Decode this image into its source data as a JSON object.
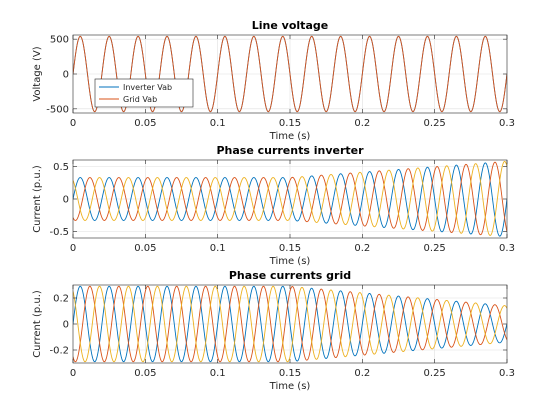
{
  "chart_data": [
    {
      "type": "line",
      "title": "Line voltage",
      "xlabel": "Time (s)",
      "ylabel": "Voltage (V)",
      "xlim": [
        0,
        0.3
      ],
      "ylim": [
        -560,
        560
      ],
      "xticks": [
        0,
        0.05,
        0.1,
        0.15,
        0.2,
        0.25,
        0.3
      ],
      "xtick_labels": [
        "0",
        "0.05",
        "0.1",
        "0.15",
        "0.2",
        "0.25",
        "0.3"
      ],
      "yticks": [
        -500,
        0,
        500
      ],
      "ytick_labels": [
        "-500",
        "0",
        "500"
      ],
      "grid": true,
      "legend": {
        "position": "bottom-left",
        "entries": [
          "Inverter Vab",
          "Grid Vab"
        ]
      },
      "series": [
        {
          "name": "Inverter Vab",
          "color": "#0072BD",
          "waveform": "sine",
          "frequency_hz": 50,
          "amplitude": 540,
          "phase_deg": 0
        },
        {
          "name": "Grid Vab",
          "color": "#D95319",
          "waveform": "sine",
          "frequency_hz": 50,
          "amplitude": 540,
          "phase_deg": 0
        }
      ]
    },
    {
      "type": "line",
      "title": "Phase currents inverter",
      "xlabel": "Time (s)",
      "ylabel": "Current (p.u.)",
      "xlim": [
        0,
        0.3
      ],
      "ylim": [
        -0.6,
        0.6
      ],
      "xticks": [
        0,
        0.05,
        0.1,
        0.15,
        0.2,
        0.25,
        0.3
      ],
      "xtick_labels": [
        "0",
        "0.05",
        "0.1",
        "0.15",
        "0.2",
        "0.25",
        "0.3"
      ],
      "yticks": [
        -0.5,
        0,
        0.5
      ],
      "ytick_labels": [
        "-0.5",
        "0",
        "0.5"
      ],
      "grid": true,
      "frequency_hz": 50,
      "envelope": {
        "t": [
          0,
          0.15,
          0.3
        ],
        "amplitude": [
          0.33,
          0.33,
          0.58
        ]
      },
      "series": [
        {
          "color": "#0072BD",
          "phase_deg": 0
        },
        {
          "color": "#D95319",
          "phase_deg": -120
        },
        {
          "color": "#EDB120",
          "phase_deg": 120
        }
      ]
    },
    {
      "type": "line",
      "title": "Phase currents grid",
      "xlabel": "Time (s)",
      "ylabel": "Current (p.u.)",
      "xlim": [
        0,
        0.3
      ],
      "ylim": [
        -0.3,
        0.3
      ],
      "xticks": [
        0,
        0.05,
        0.1,
        0.15,
        0.2,
        0.25,
        0.3
      ],
      "xtick_labels": [
        "0",
        "0.05",
        "0.1",
        "0.15",
        "0.2",
        "0.25",
        "0.3"
      ],
      "yticks": [
        -0.2,
        0,
        0.2
      ],
      "ytick_labels": [
        "-0.2",
        "0",
        "0.2"
      ],
      "grid": true,
      "frequency_hz": 50,
      "envelope": {
        "t": [
          0,
          0.15,
          0.3
        ],
        "amplitude": [
          0.29,
          0.29,
          0.14
        ]
      },
      "series": [
        {
          "color": "#0072BD",
          "phase_deg": 0
        },
        {
          "color": "#D95319",
          "phase_deg": -120
        },
        {
          "color": "#EDB120",
          "phase_deg": 120
        }
      ]
    }
  ]
}
